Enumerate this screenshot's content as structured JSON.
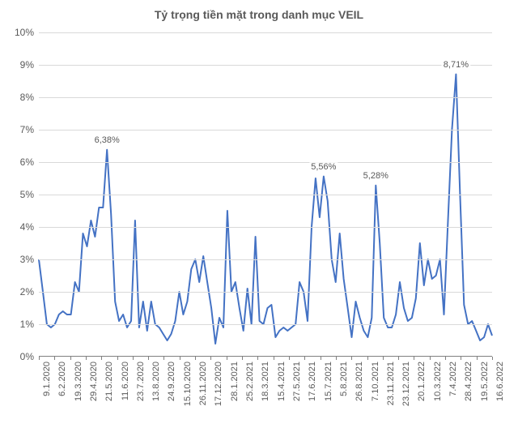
{
  "chart": {
    "type": "line",
    "title": "Tỷ trọng tiền mặt trong danh mục VEIL",
    "title_fontsize": 14,
    "title_color": "#595959",
    "background_color": "#ffffff",
    "grid_color": "#d9d9d9",
    "axis_line_color": "#808080",
    "line_color": "#4472c4",
    "line_width": 2,
    "label_fontsize": 12,
    "label_color": "#595959",
    "ylim": [
      0,
      10
    ],
    "ytick_step": 1,
    "ytick_labels": [
      "0%",
      "1%",
      "2%",
      "3%",
      "4%",
      "5%",
      "6%",
      "7%",
      "8%",
      "9%",
      "10%"
    ],
    "x_labels": [
      "9.1.2020",
      "6.2.2020",
      "19.3.2020",
      "29.4.2020",
      "21.5.2020",
      "11.6.2020",
      "23.7.2020",
      "13.8.2020",
      "24.9.2020",
      "15.10.2020",
      "26.11.2020",
      "17.12.2020",
      "28.1.2021",
      "25.2.2021",
      "18.3.2021",
      "15.4.2021",
      "27.5.2021",
      "17.6.2021",
      "15.7.2021",
      "5.8.2021",
      "26.8.2021",
      "7.10.2021",
      "23.11.2021",
      "23.12.2021",
      "20.1.2022",
      "10.3.2022",
      "7.4.2022",
      "28.4.2022",
      "19.5.2022",
      "16.6.2022"
    ],
    "values": [
      3.0,
      2.0,
      1.0,
      0.9,
      1.0,
      1.3,
      1.4,
      1.3,
      1.3,
      2.3,
      2.0,
      3.8,
      3.4,
      4.2,
      3.7,
      4.6,
      4.6,
      6.38,
      4.4,
      1.7,
      1.1,
      1.3,
      0.9,
      1.1,
      4.2,
      0.9,
      1.7,
      0.8,
      1.7,
      1.0,
      0.9,
      0.7,
      0.5,
      0.7,
      1.1,
      2.0,
      1.3,
      1.7,
      2.7,
      3.0,
      2.3,
      3.1,
      2.3,
      1.5,
      0.4,
      1.2,
      0.9,
      4.5,
      2.0,
      2.3,
      1.5,
      0.8,
      2.1,
      1.0,
      3.7,
      1.1,
      1.0,
      1.5,
      1.6,
      0.6,
      0.8,
      0.9,
      0.8,
      0.9,
      1.0,
      2.3,
      2.0,
      1.1,
      4.0,
      5.5,
      4.3,
      5.56,
      4.8,
      3.0,
      2.3,
      3.8,
      2.4,
      1.5,
      0.6,
      1.7,
      1.2,
      0.8,
      0.6,
      1.2,
      5.28,
      3.5,
      1.2,
      0.9,
      0.9,
      1.3,
      2.3,
      1.5,
      1.1,
      1.2,
      1.8,
      3.5,
      2.2,
      3.0,
      2.4,
      2.5,
      3.0,
      1.3,
      4.2,
      7.0,
      8.71,
      5.0,
      1.6,
      1.0,
      1.1,
      0.8,
      0.5,
      0.6,
      1.0,
      0.65
    ],
    "num_points": 114,
    "annotations": [
      {
        "label": "6,38%",
        "index": 17,
        "value": 6.38
      },
      {
        "label": "5,56%",
        "index": 71,
        "value": 5.56
      },
      {
        "label": "5,28%",
        "index": 84,
        "value": 5.28
      },
      {
        "label": "8,71%",
        "index": 104,
        "value": 8.71
      }
    ]
  }
}
